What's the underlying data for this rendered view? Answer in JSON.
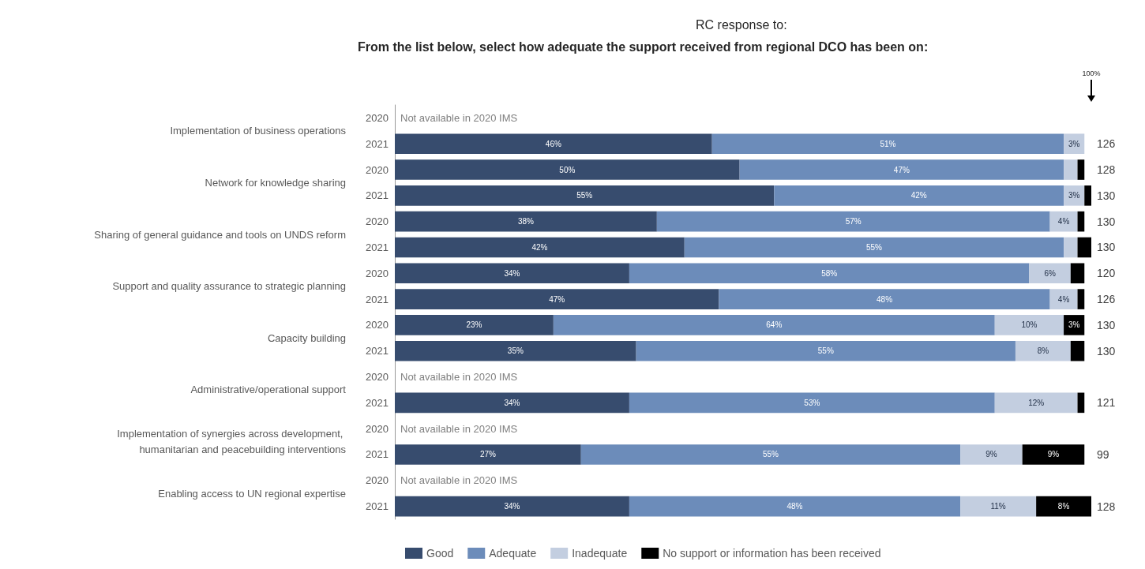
{
  "chart_data": {
    "type": "bar",
    "orientation": "horizontal",
    "stacked": true,
    "title": "From the list below, select how adequate the support received from regional DCO has been on:",
    "subtitle": "RC response to:",
    "categories": [
      "2020",
      "2021",
      "2020",
      "2021",
      "2020",
      "2021",
      "2020",
      "2021",
      "2020",
      "2021",
      "2020",
      "2021",
      "2020",
      "2021",
      "2020",
      "2021"
    ],
    "series": [
      {
        "name": "Good",
        "color": "#374c6e",
        "values": [
          null,
          46,
          50,
          55,
          38,
          42,
          34,
          47,
          23,
          35,
          null,
          34,
          null,
          27,
          null,
          34
        ],
        "value_labels": [
          "Not available in 2020 IMS",
          "46%",
          "50%",
          "55%",
          "38%",
          "42%",
          "34%",
          "47%",
          "23%",
          "35%",
          "Not available in 2020 IMS",
          "34%",
          "Not available in 2020 IMS",
          "27%",
          "Not available in 2020 IMS",
          "34%"
        ]
      },
      {
        "name": "Adequate",
        "color": "#6c8cba",
        "values": [
          null,
          51,
          47,
          42,
          57,
          55,
          58,
          48,
          64,
          55,
          null,
          53,
          null,
          55,
          null,
          48
        ],
        "value_labels": [
          null,
          "51%",
          "47%",
          "42%",
          "57%",
          "55%",
          "58%",
          "48%",
          "64%",
          "55%",
          null,
          "53%",
          null,
          "55%",
          null,
          "48%"
        ]
      },
      {
        "name": "Inadequate",
        "color": "#c3cee0",
        "values": [
          null,
          3,
          2,
          3,
          4,
          2,
          6,
          4,
          10,
          8,
          null,
          12,
          null,
          9,
          null,
          11
        ],
        "value_labels": [
          null,
          "3%",
          null,
          "3%",
          "4%",
          null,
          "6%",
          "4%",
          "10%",
          "8%",
          null,
          "12%",
          null,
          "9%",
          null,
          "11%"
        ]
      },
      {
        "name": "No support or information has been received",
        "color": "#000000",
        "values": [
          null,
          null,
          1,
          1,
          1,
          2,
          2,
          1,
          3,
          2,
          null,
          1,
          null,
          9,
          null,
          8
        ],
        "value_labels": [
          null,
          null,
          null,
          null,
          null,
          null,
          null,
          null,
          "3%",
          null,
          null,
          null,
          null,
          "9%",
          null,
          "8%"
        ]
      }
    ],
    "annotations": [
      "Implementation of business operations",
      "Network for knowledge sharing",
      "Sharing of general guidance and tools on UNDS reform",
      "Support and quality assurance to strategic planning",
      "Capacity building",
      "Administrative/operational support",
      "Implementation of synergies across development, humanitarian and peacebuilding interventions",
      "Enabling access to UN regional expertise",
      "126",
      "128",
      "130",
      "130",
      "130",
      "120",
      "126",
      "130",
      "130",
      "121",
      "99",
      "128",
      "100%"
    ],
    "legend": "bottom left",
    "grid": false
  }
}
